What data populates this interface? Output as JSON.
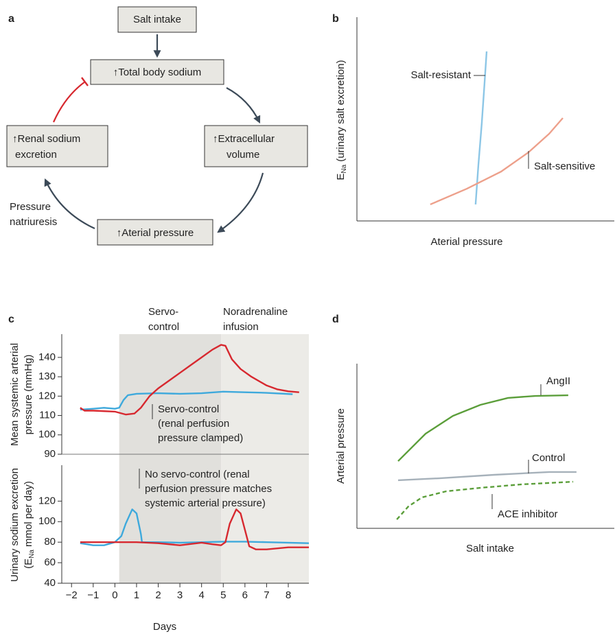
{
  "panel_labels": [
    "a",
    "b",
    "c",
    "d"
  ],
  "diagram": {
    "nodes": [
      {
        "lines": [
          "Salt intake"
        ]
      },
      {
        "lines": [
          "↑Total body sodium"
        ]
      },
      {
        "lines": [
          "↑Extracellular",
          "volume"
        ]
      },
      {
        "lines": [
          "↑Aterial pressure"
        ]
      },
      {
        "lines": [
          "↑Renal sodium",
          "excretion"
        ]
      }
    ],
    "edge_label": [
      "Pressure",
      "natriuresis"
    ]
  },
  "chart_data": [
    {
      "type": "line",
      "xlabel": "Aterial pressure",
      "ylabel": {
        "symbol": "E",
        "subscript": "Na",
        "text": "(urinary salt excretion)"
      },
      "xlim": [
        0,
        100
      ],
      "ylim": [
        0,
        100
      ],
      "series": [
        {
          "name": "Salt-resistant",
          "color": "#8cc6e6",
          "x": [
            46.1,
            47.2,
            48.5,
            49.6,
            50.4
          ],
          "values": [
            8.1,
            27.6,
            47.8,
            68,
            83.2
          ]
        },
        {
          "name": "Salt-sensitive",
          "color": "#eda08b",
          "x": [
            28.5,
            42.7,
            56,
            66.7,
            74.7,
            80
          ],
          "values": [
            8.1,
            15.8,
            24.2,
            33.7,
            42.8,
            50.5
          ]
        }
      ]
    },
    {
      "type": "line",
      "ylabel": {
        "lines": [
          "Mean systemic arterial",
          "pressure (mmHg)"
        ]
      },
      "xlim": [
        -2.45,
        8.95
      ],
      "ylim": [
        90,
        152
      ],
      "yticks": [
        90,
        100,
        110,
        120,
        130,
        140
      ],
      "shaded_regions": [
        {
          "label": [
            "Servo-",
            "control"
          ],
          "start": 0.2,
          "end": 4.9,
          "color": "#e1e0dc"
        },
        {
          "label": [
            "Noradrenaline",
            "infusion"
          ],
          "start": 4.9,
          "end": 8.95,
          "color": "#ecebe7"
        }
      ],
      "annotations": [
        {
          "lines": [
            "Servo-control",
            "(renal perfusion",
            "pressure clamped)"
          ]
        }
      ],
      "series": [
        {
          "color": "#3ea9dc",
          "x": [
            -1.6,
            -1,
            -0.5,
            0,
            0.2,
            0.4,
            0.6,
            1,
            2,
            3,
            4,
            5,
            6,
            7,
            8.2
          ],
          "values": [
            113,
            113.5,
            114,
            113.5,
            114,
            118,
            120.5,
            121.2,
            121.5,
            121.2,
            121.5,
            122.3,
            122,
            121.7,
            121
          ]
        },
        {
          "color": "#d7282f",
          "x": [
            -1.6,
            -1.4,
            -1,
            0,
            0.5,
            0.9,
            1.2,
            1.6,
            2,
            2.5,
            3,
            3.5,
            4,
            4.5,
            4.9,
            5.1,
            5.4,
            5.8,
            6.3,
            7,
            7.5,
            8,
            8.5
          ],
          "values": [
            114,
            112.5,
            112.5,
            112,
            110.5,
            111,
            114,
            120,
            124,
            128,
            132,
            136,
            140,
            144,
            146.5,
            146,
            139,
            134,
            130,
            125.5,
            123.5,
            122.5,
            122
          ]
        }
      ]
    },
    {
      "type": "line",
      "xlabel": "Days",
      "ylabel": {
        "line1": "Urinary sodium excretion",
        "line2": {
          "before": "(E",
          "subscript": "Na",
          "after": "mmol per day)"
        }
      },
      "xlim": [
        -2.45,
        8.95
      ],
      "ylim": [
        40,
        155
      ],
      "xticks": [
        {
          "value": -2,
          "label": "−2"
        },
        {
          "value": -1,
          "label": "−1"
        },
        0,
        1,
        2,
        3,
        4,
        5,
        6,
        7,
        8
      ],
      "yticks": [
        40,
        60,
        80,
        100,
        120
      ],
      "annotations": [
        {
          "lines": [
            "No servo-control (renal",
            "perfusion pressure matches",
            "systemic arterial pressure)"
          ]
        }
      ],
      "series": [
        {
          "color": "#3ea9dc",
          "x": [
            -1.6,
            -1,
            -0.5,
            0,
            0.3,
            0.5,
            0.8,
            1,
            1.1,
            1.2,
            1.25,
            1.4,
            2,
            3,
            4,
            5,
            6,
            7,
            8,
            8.95
          ],
          "values": [
            79,
            77,
            77,
            80,
            86,
            98,
            112,
            108,
            98,
            88,
            80,
            80,
            80,
            79.5,
            80,
            80.5,
            80.5,
            80,
            79.5,
            79
          ]
        },
        {
          "color": "#d7282f",
          "x": [
            -1.6,
            0,
            1,
            2,
            3,
            4,
            4.5,
            4.9,
            5.1,
            5.3,
            5.6,
            5.8,
            6,
            6.2,
            6.5,
            7,
            7.5,
            8,
            8.95
          ],
          "values": [
            80,
            80,
            80,
            79,
            77,
            79.5,
            78,
            77,
            80,
            98,
            112,
            108,
            92,
            76,
            73,
            73,
            74,
            75,
            75
          ]
        }
      ]
    },
    {
      "type": "line",
      "xlabel": "Salt intake",
      "ylabel": "Arterial pressure",
      "xlim": [
        0,
        100
      ],
      "ylim": [
        0,
        100
      ],
      "series": [
        {
          "name": "AngII",
          "color": "#5b9e3a",
          "x": [
            16,
            26.7,
            37.3,
            48,
            58.7,
            69.3,
            82.1
          ],
          "values": [
            40.8,
            57.5,
            68.3,
            75,
            79.2,
            80.4,
            80.8
          ]
        },
        {
          "name": "Control",
          "color": "#a6b1ba",
          "x": [
            16,
            32,
            53.3,
            74.7,
            85.3
          ],
          "values": [
            29.2,
            30.4,
            32.5,
            34.2,
            34.2
          ]
        },
        {
          "name": "ACE inhibitor",
          "color": "#5b9e3a",
          "dashed": true,
          "x": [
            15.5,
            20,
            25.3,
            34.7,
            48,
            64,
            84
          ],
          "values": [
            5.4,
            13.3,
            18.8,
            22.5,
            24.6,
            26.7,
            28.3
          ]
        }
      ]
    }
  ]
}
